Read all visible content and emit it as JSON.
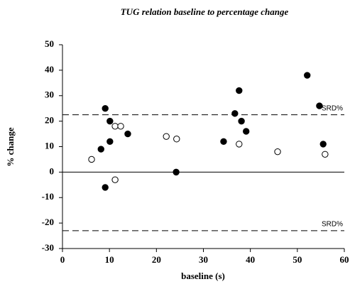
{
  "chart_data": {
    "type": "scatter",
    "title": "TUG  relation baseline to percentage change",
    "x_label": "baseline (s)",
    "y_label": "% change",
    "xlim": [
      0,
      60
    ],
    "xticks": [
      0,
      10,
      20,
      30,
      40,
      50,
      60
    ],
    "ylim": [
      -30,
      50
    ],
    "yticks": [
      -30,
      -20,
      -10,
      0,
      10,
      20,
      30,
      40,
      50
    ],
    "series": [
      {
        "color": "#000000",
        "fill": "#000000",
        "x": [
          9.1,
          10.1,
          8.2,
          10.1,
          9.1,
          13.9,
          24.2,
          34.3,
          36.7,
          37.6,
          38.1,
          39.1,
          52.1,
          54.7,
          55.5
        ],
        "values": [
          25,
          20,
          9,
          12,
          -6,
          15,
          0,
          12,
          23,
          32,
          20,
          16,
          38,
          26,
          11
        ]
      },
      {
        "color": "#000000",
        "fill": "#ffffff",
        "x": [
          6.2,
          11.2,
          12.4,
          11.2,
          22.1,
          24.3,
          37.6,
          45.8,
          55.9
        ],
        "values": [
          5,
          18,
          18,
          -3,
          14,
          13,
          11,
          8,
          7
        ]
      }
    ],
    "reference_lines": [
      {
        "value": 22.5,
        "label": "SRD%",
        "style": "dashed"
      },
      {
        "value": -23,
        "label": "SRD%",
        "style": "dashed"
      },
      {
        "value": 0,
        "style": "solid"
      }
    ]
  }
}
